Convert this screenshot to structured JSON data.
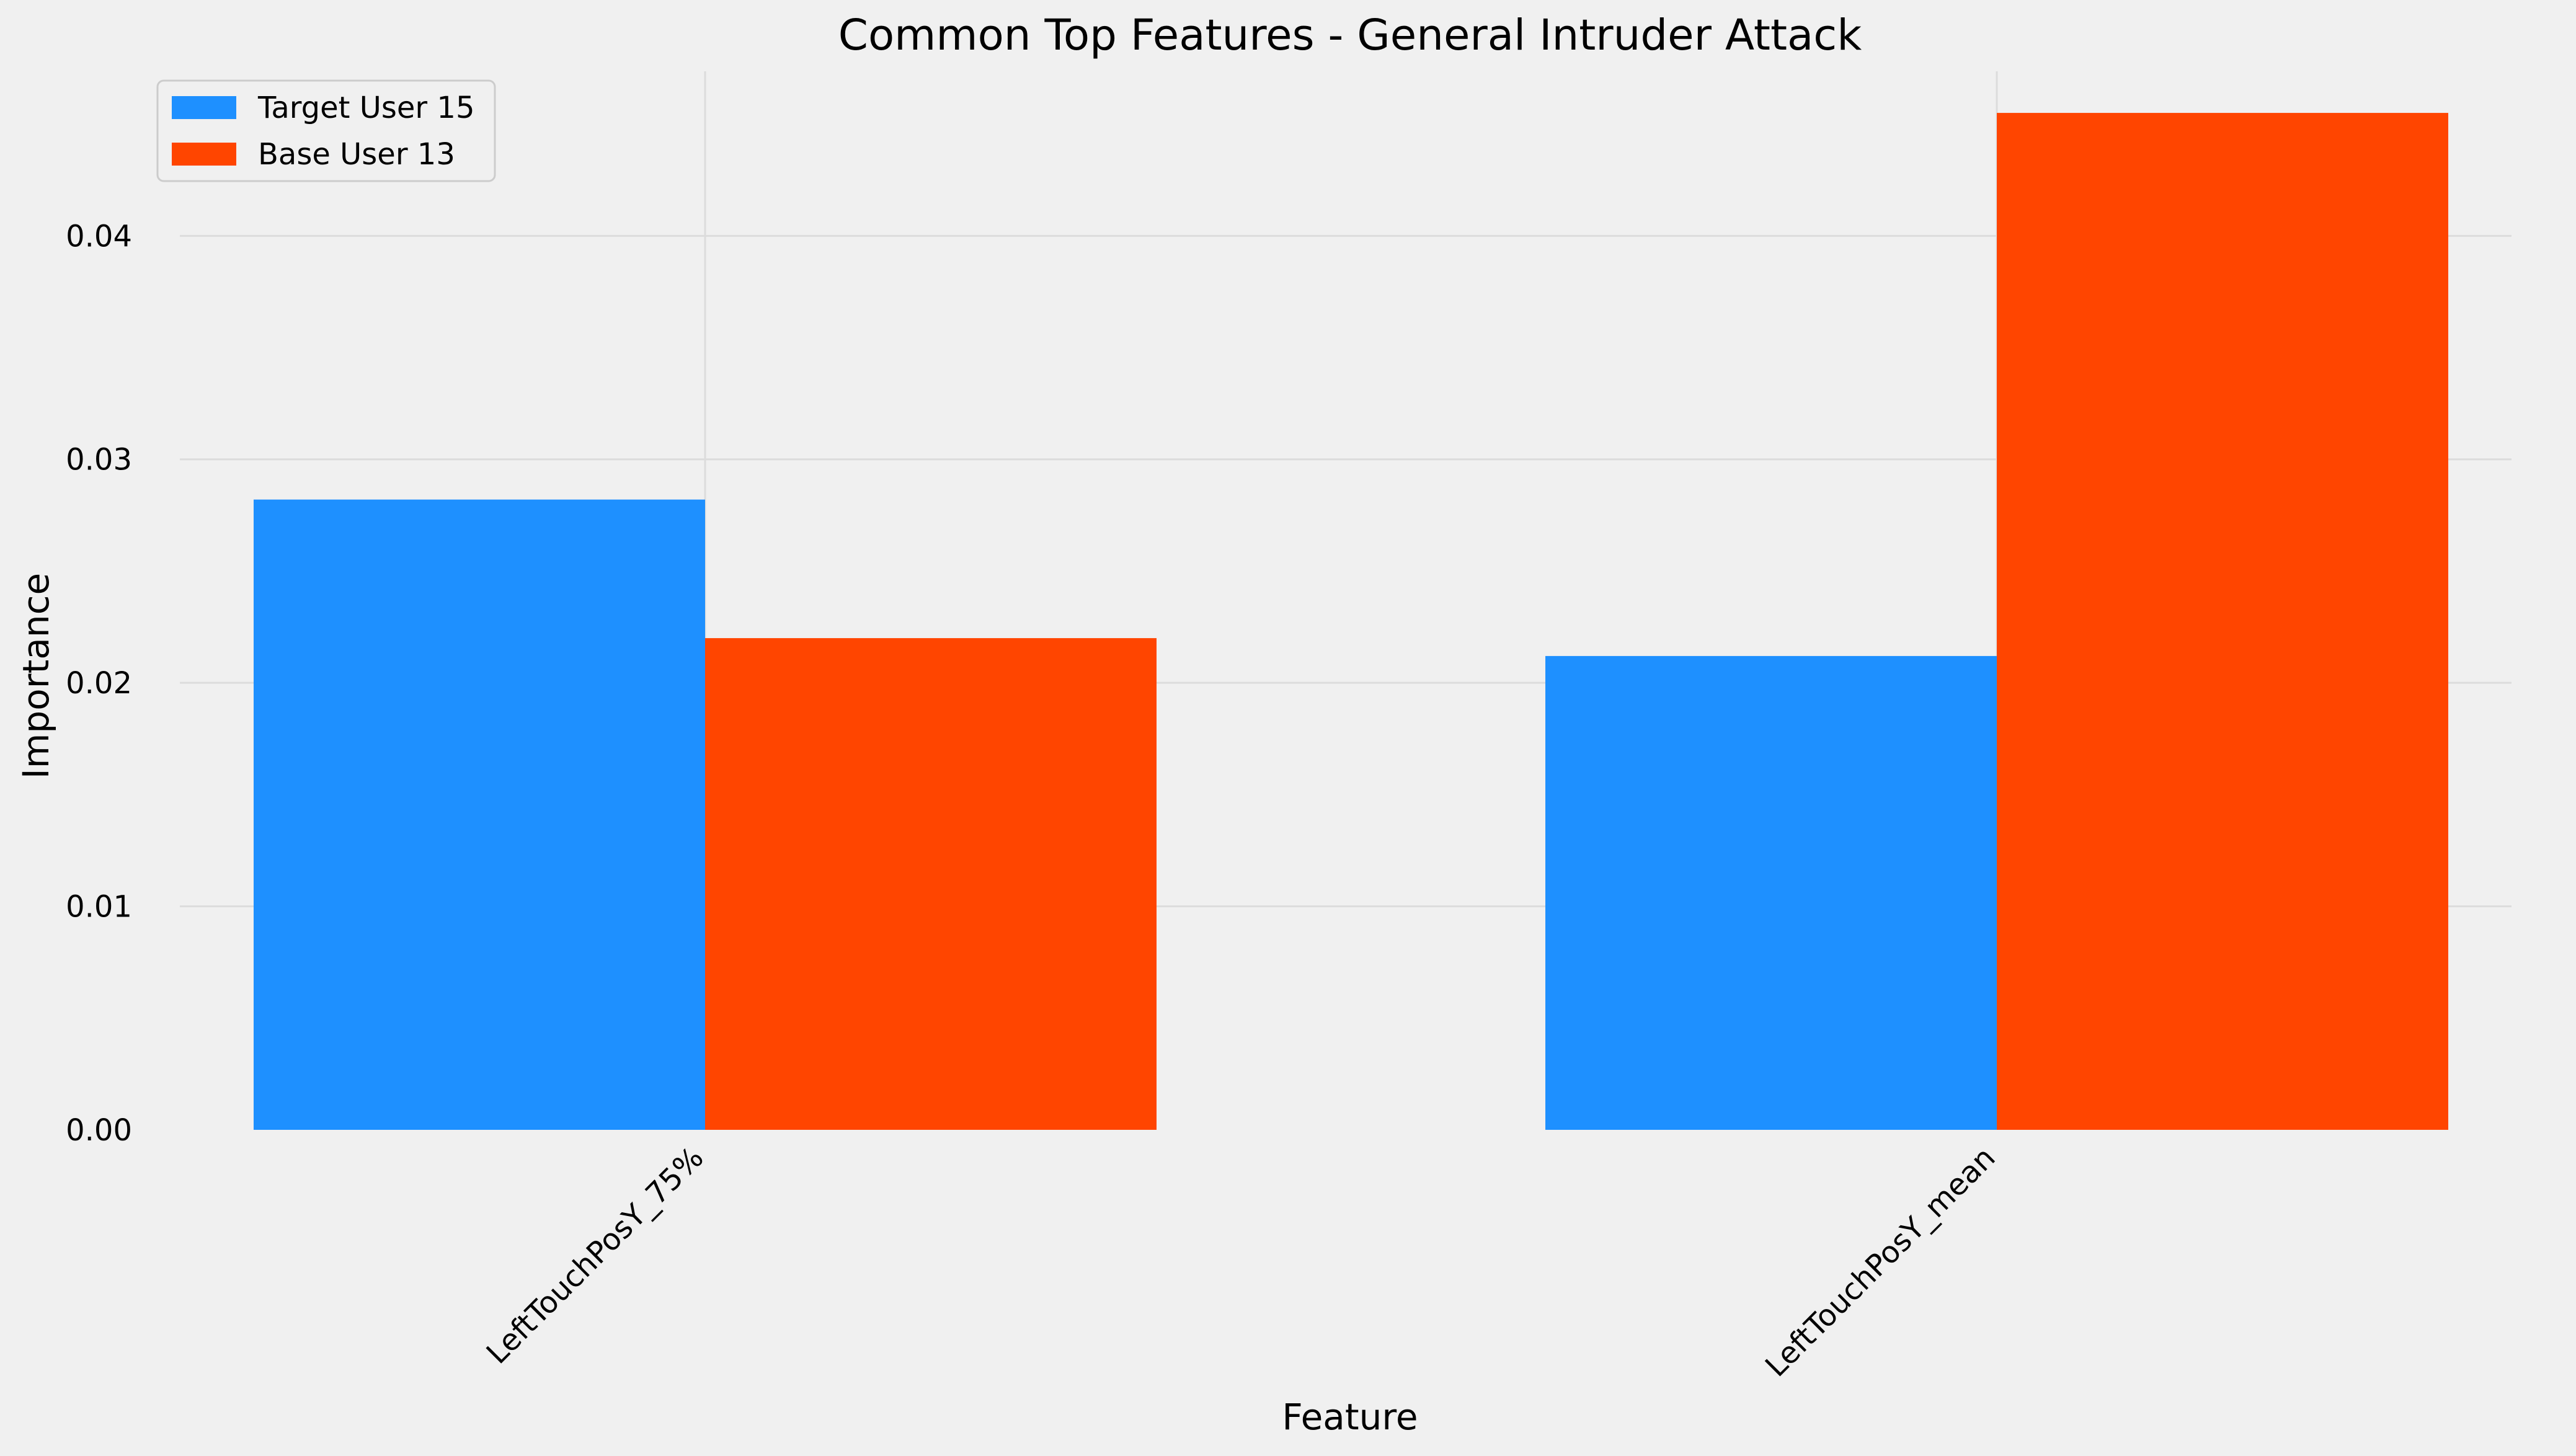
{
  "chart_data": {
    "type": "bar",
    "title": "Common Top Features - General Intruder Attack",
    "xlabel": "Feature",
    "ylabel": "Importance",
    "categories": [
      "LeftTouchPosY_75%",
      "LeftTouchPosY_mean"
    ],
    "series": [
      {
        "name": "Target User 15",
        "color": "#1e90ff",
        "values": [
          0.0282,
          0.0212
        ]
      },
      {
        "name": "Base User 13",
        "color": "#ff4500",
        "values": [
          0.022,
          0.0455
        ]
      }
    ],
    "ylim": [
      0,
      0.0475
    ],
    "yticks": [
      0,
      0.01,
      0.02,
      0.03,
      0.04
    ],
    "ytick_labels": [
      "0.00",
      "0.01",
      "0.02",
      "0.03",
      "0.04"
    ],
    "grid": true,
    "legend_position": "top-left"
  }
}
